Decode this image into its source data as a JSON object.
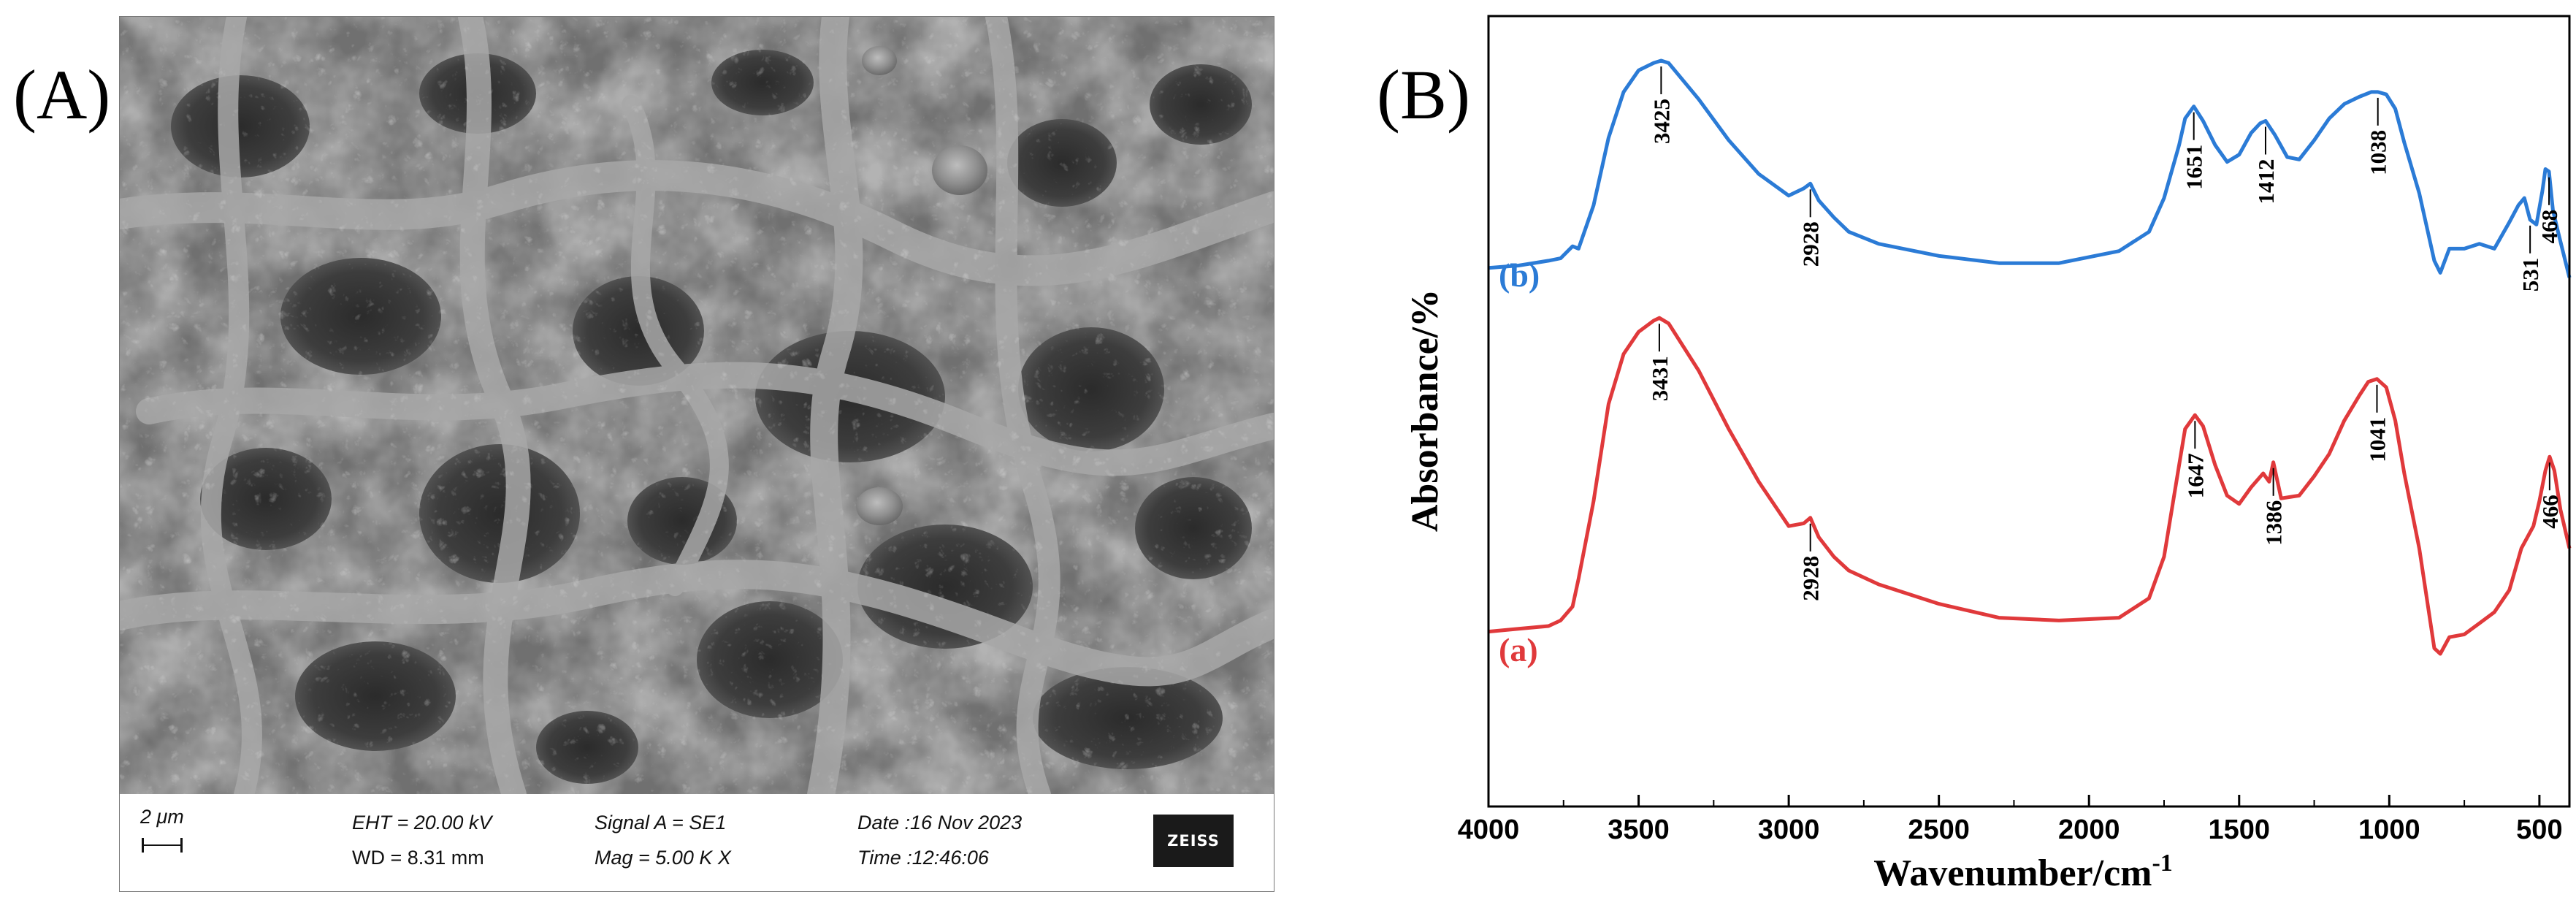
{
  "panels": {
    "a_label": "(A)",
    "b_label": "(B)"
  },
  "sem": {
    "scale_bar": "2 μm",
    "eht": "EHT = 20.00 kV",
    "wd": "WD = 8.31 mm",
    "signal": "Signal A = SE1",
    "mag": "Mag =   5.00 K X",
    "date": "Date :16 Nov 2023",
    "time": "Time :12:46:06",
    "logo": "ZEISS"
  },
  "chart_data": {
    "type": "line",
    "xlabel": "Wavenumber/cm",
    "xlabel_sup": "-1",
    "ylabel": "Absorbance/%",
    "xlim": [
      4000,
      400
    ],
    "x_reversed": true,
    "xticks": [
      4000,
      3500,
      3000,
      2500,
      2000,
      1500,
      1000,
      500
    ],
    "yticks_shown": false,
    "legend": "inline labels at left of each curve",
    "series": [
      {
        "name": "(b)",
        "color": "#2b7bd6",
        "x": [
          4000,
          3900,
          3800,
          3760,
          3720,
          3700,
          3650,
          3600,
          3550,
          3500,
          3450,
          3425,
          3400,
          3300,
          3200,
          3100,
          3000,
          2950,
          2928,
          2900,
          2850,
          2800,
          2700,
          2500,
          2300,
          2100,
          1900,
          1800,
          1750,
          1700,
          1680,
          1651,
          1620,
          1580,
          1540,
          1500,
          1460,
          1430,
          1412,
          1380,
          1340,
          1300,
          1250,
          1200,
          1150,
          1100,
          1060,
          1038,
          1010,
          980,
          950,
          900,
          850,
          830,
          800,
          750,
          700,
          650,
          600,
          570,
          550,
          531,
          510,
          490,
          480,
          468,
          455,
          440,
          420,
          400
        ],
        "y": [
          0.04,
          0.05,
          0.07,
          0.08,
          0.13,
          0.12,
          0.3,
          0.58,
          0.77,
          0.86,
          0.89,
          0.9,
          0.89,
          0.74,
          0.57,
          0.43,
          0.34,
          0.37,
          0.39,
          0.32,
          0.25,
          0.19,
          0.14,
          0.09,
          0.06,
          0.06,
          0.11,
          0.19,
          0.33,
          0.55,
          0.66,
          0.71,
          0.65,
          0.55,
          0.48,
          0.51,
          0.6,
          0.64,
          0.65,
          0.59,
          0.5,
          0.49,
          0.57,
          0.66,
          0.72,
          0.75,
          0.77,
          0.77,
          0.76,
          0.7,
          0.56,
          0.35,
          0.07,
          0.02,
          0.12,
          0.12,
          0.14,
          0.12,
          0.23,
          0.3,
          0.33,
          0.24,
          0.22,
          0.36,
          0.45,
          0.44,
          0.28,
          0.2,
          0.1,
          0.0
        ]
      },
      {
        "name": "(a)",
        "color": "#e0393b",
        "x": [
          4000,
          3900,
          3800,
          3760,
          3720,
          3700,
          3650,
          3600,
          3550,
          3500,
          3450,
          3431,
          3400,
          3300,
          3200,
          3100,
          3000,
          2950,
          2928,
          2900,
          2850,
          2800,
          2700,
          2500,
          2300,
          2100,
          1900,
          1800,
          1750,
          1700,
          1680,
          1647,
          1620,
          1580,
          1540,
          1500,
          1460,
          1420,
          1400,
          1386,
          1360,
          1300,
          1250,
          1200,
          1150,
          1100,
          1070,
          1041,
          1010,
          980,
          950,
          900,
          850,
          830,
          800,
          750,
          700,
          650,
          600,
          560,
          520,
          500,
          480,
          466,
          450,
          430,
          400
        ],
        "y": [
          0.08,
          0.09,
          0.1,
          0.12,
          0.17,
          0.27,
          0.55,
          0.9,
          1.08,
          1.16,
          1.2,
          1.21,
          1.19,
          1.02,
          0.81,
          0.62,
          0.46,
          0.47,
          0.49,
          0.42,
          0.35,
          0.3,
          0.25,
          0.18,
          0.13,
          0.12,
          0.13,
          0.2,
          0.35,
          0.68,
          0.81,
          0.86,
          0.82,
          0.68,
          0.57,
          0.54,
          0.6,
          0.65,
          0.62,
          0.69,
          0.56,
          0.57,
          0.64,
          0.72,
          0.84,
          0.93,
          0.98,
          0.99,
          0.96,
          0.84,
          0.65,
          0.38,
          0.02,
          0.0,
          0.06,
          0.07,
          0.11,
          0.15,
          0.23,
          0.38,
          0.46,
          0.55,
          0.66,
          0.71,
          0.66,
          0.52,
          0.38
        ]
      }
    ],
    "peak_labels": [
      {
        "series": "(b)",
        "x": 3425,
        "text": "3425",
        "side": "below"
      },
      {
        "series": "(b)",
        "x": 2928,
        "text": "2928",
        "side": "below"
      },
      {
        "series": "(b)",
        "x": 1651,
        "text": "1651",
        "side": "below"
      },
      {
        "series": "(b)",
        "x": 1412,
        "text": "1412",
        "side": "below"
      },
      {
        "series": "(b)",
        "x": 1038,
        "text": "1038",
        "side": "below"
      },
      {
        "series": "(b)",
        "x": 531,
        "text": "531",
        "side": "below"
      },
      {
        "series": "(b)",
        "x": 468,
        "text": "468",
        "side": "below"
      },
      {
        "series": "(a)",
        "x": 3431,
        "text": "3431",
        "side": "below"
      },
      {
        "series": "(a)",
        "x": 2928,
        "text": "2928",
        "side": "below"
      },
      {
        "series": "(a)",
        "x": 1647,
        "text": "1647",
        "side": "below"
      },
      {
        "series": "(a)",
        "x": 1386,
        "text": "1386",
        "side": "below"
      },
      {
        "series": "(a)",
        "x": 1041,
        "text": "1041",
        "side": "below"
      },
      {
        "series": "(a)",
        "x": 466,
        "text": "466",
        "side": "below"
      }
    ]
  }
}
